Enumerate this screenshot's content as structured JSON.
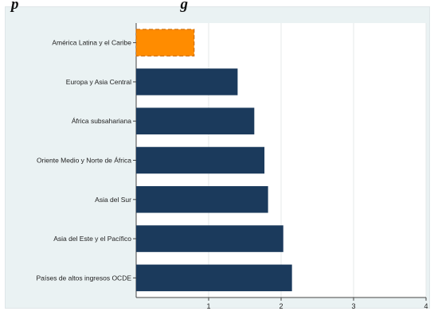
{
  "title_visible": "p",
  "title_fragment_right": "g",
  "colors": {
    "highlight": "#ff8c00",
    "bar": "#1b3a5c",
    "plot_bg": "#ffffff",
    "outer_bg": "#eaf2f3",
    "grid": "#e4e8ea"
  },
  "chart_data": {
    "type": "bar",
    "orientation": "horizontal",
    "categories": [
      "América Latina y el Caribe",
      "Europa y Asia Central",
      "África subsahariana",
      "Oriente Medio y Norte de África",
      "Asia del Sur",
      "Asia del Este y el Pacífico",
      "Países de altos ingresos OCDE"
    ],
    "values": [
      0.8,
      1.4,
      1.63,
      1.77,
      1.82,
      2.03,
      2.15
    ],
    "highlight_index": 0,
    "xlim": [
      0,
      4
    ],
    "xticks": [
      "1",
      "2",
      "3",
      "4"
    ],
    "xtick_values": [
      1,
      2,
      3,
      4
    ],
    "grid": true
  }
}
